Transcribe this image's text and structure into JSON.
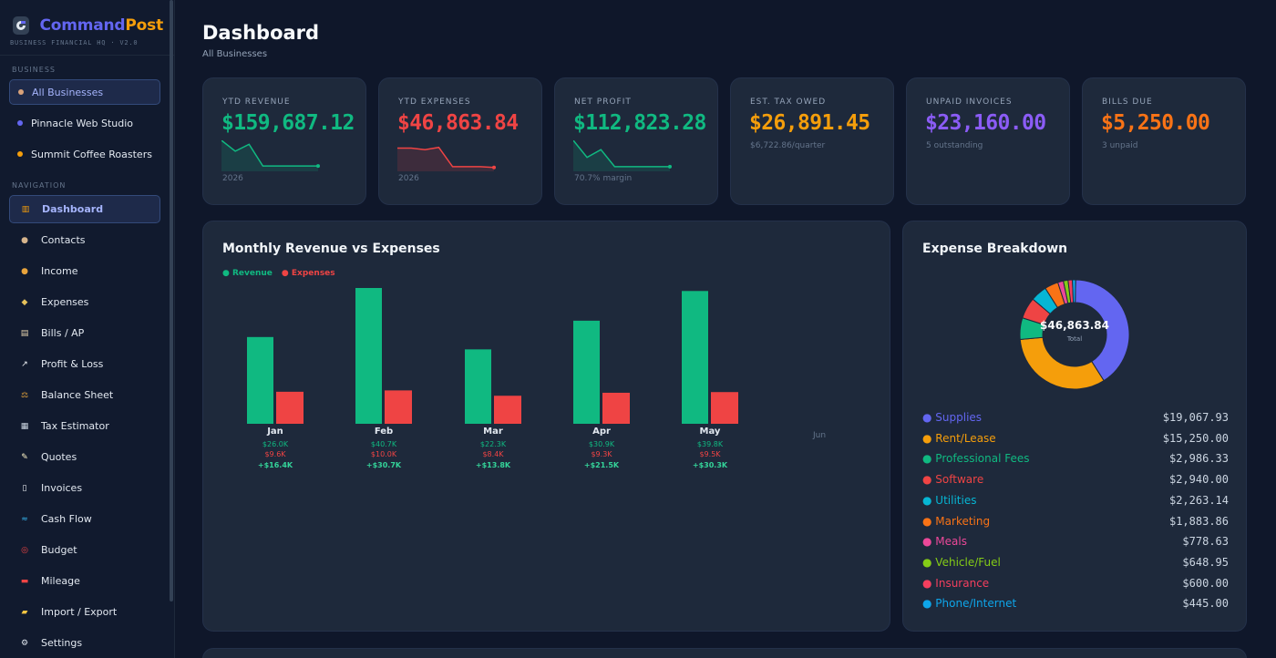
{
  "brand": {
    "name_primary": "Command",
    "name_accent": "Post",
    "tagline": "BUSINESS FINANCIAL HQ · V2.0"
  },
  "sidebar": {
    "business_section": "BUSINESS",
    "businesses": [
      {
        "label": "All Businesses",
        "color": "#f59e0b",
        "active": true
      },
      {
        "label": "Pinnacle Web Studio",
        "color": "#6366f1",
        "active": false
      },
      {
        "label": "Summit Coffee Roasters",
        "color": "#f59e0b",
        "active": false
      }
    ],
    "nav_section": "NAVIGATION",
    "nav": [
      {
        "label": "Dashboard",
        "icon": "bar-chart-icon",
        "glyph": "▥",
        "icon_color": "#f59e0b",
        "active": true
      },
      {
        "label": "Contacts",
        "icon": "people-icon",
        "glyph": "●",
        "icon_color": "#d6b48c"
      },
      {
        "label": "Income",
        "icon": "money-bag-icon",
        "glyph": "●",
        "icon_color": "#e8a33c"
      },
      {
        "label": "Expenses",
        "icon": "money-wings-icon",
        "glyph": "◆",
        "icon_color": "#e5c15b"
      },
      {
        "label": "Bills / AP",
        "icon": "clipboard-icon",
        "glyph": "▤",
        "icon_color": "#e8d5b0"
      },
      {
        "label": "Profit & Loss",
        "icon": "trend-up-icon",
        "glyph": "↗",
        "icon_color": "#f1f5f9"
      },
      {
        "label": "Balance Sheet",
        "icon": "scales-icon",
        "glyph": "⚖",
        "icon_color": "#e5a43c"
      },
      {
        "label": "Tax Estimator",
        "icon": "bank-icon",
        "glyph": "▦",
        "icon_color": "#cbd5e1"
      },
      {
        "label": "Quotes",
        "icon": "memo-icon",
        "glyph": "✎",
        "icon_color": "#fef3c7"
      },
      {
        "label": "Invoices",
        "icon": "document-icon",
        "glyph": "▯",
        "icon_color": "#f1f5f9"
      },
      {
        "label": "Cash Flow",
        "icon": "wave-icon",
        "glyph": "≈",
        "icon_color": "#38bdf8"
      },
      {
        "label": "Budget",
        "icon": "target-icon",
        "glyph": "◎",
        "icon_color": "#ef4444"
      },
      {
        "label": "Mileage",
        "icon": "car-icon",
        "glyph": "▬",
        "icon_color": "#ef4444"
      },
      {
        "label": "Import / Export",
        "icon": "folder-icon",
        "glyph": "▰",
        "icon_color": "#f5c542"
      },
      {
        "label": "Settings",
        "icon": "gear-icon",
        "glyph": "⚙",
        "icon_color": "#e2e8f0"
      }
    ]
  },
  "header": {
    "title": "Dashboard",
    "subtitle": "All Businesses"
  },
  "kpis": [
    {
      "label": "YTD REVENUE",
      "value": "$159,687.12",
      "color": "#10b981",
      "sub": "2026",
      "sparkline": [
        40,
        26,
        35,
        7,
        7,
        7,
        7,
        7
      ]
    },
    {
      "label": "YTD EXPENSES",
      "value": "$46,863.84",
      "color": "#ef4444",
      "sub": "2026",
      "sparkline": [
        30,
        30,
        28,
        31,
        6,
        6,
        6,
        5
      ]
    },
    {
      "label": "NET PROFIT",
      "value": "$112,823.28",
      "color": "#10b981",
      "sub": "70.7% margin",
      "sparkline": [
        40,
        18,
        28,
        6,
        6,
        6,
        6,
        6
      ]
    },
    {
      "label": "EST. TAX OWED",
      "value": "$26,891.45",
      "color": "#f59e0b",
      "sub": "$6,722.86/quarter"
    },
    {
      "label": "UNPAID INVOICES",
      "value": "$23,160.00",
      "color": "#8b5cf6",
      "sub": "5 outstanding"
    },
    {
      "label": "BILLS DUE",
      "value": "$5,250.00",
      "color": "#f97316",
      "sub": "3 unpaid"
    }
  ],
  "revenue_panel": {
    "title": "Monthly Revenue vs Expenses",
    "legend_revenue": "● Revenue",
    "legend_expenses": "● Expenses",
    "colors": {
      "revenue": "#10b981",
      "expenses": "#ef4444"
    }
  },
  "chart_data": {
    "type": "bar",
    "categories": [
      "Jan",
      "Feb",
      "Mar",
      "Apr",
      "May",
      "Jun"
    ],
    "series": [
      {
        "name": "Revenue",
        "values": [
          26.0,
          40.7,
          22.3,
          30.9,
          39.8,
          0
        ]
      },
      {
        "name": "Expenses",
        "values": [
          9.6,
          10.0,
          8.4,
          9.3,
          9.5,
          0
        ]
      }
    ],
    "revenue_labels": [
      "$26.0K",
      "$40.7K",
      "$22.3K",
      "$30.9K",
      "$39.8K",
      ""
    ],
    "expense_labels": [
      "$9.6K",
      "$10.0K",
      "$8.4K",
      "$9.3K",
      "$9.5K",
      ""
    ],
    "net_labels": [
      "+$16.4K",
      "+$30.7K",
      "+$13.8K",
      "+$21.5K",
      "+$30.3K",
      ""
    ],
    "ylim": [
      0,
      40.7
    ]
  },
  "expense_panel": {
    "title": "Expense Breakdown",
    "total": "$46,863.84",
    "total_label": "Total",
    "items": [
      {
        "name": "Supplies",
        "amount": "$19,067.93",
        "value": 19067.93,
        "color": "#6366f1"
      },
      {
        "name": "Rent/Lease",
        "amount": "$15,250.00",
        "value": 15250.0,
        "color": "#f59e0b"
      },
      {
        "name": "Professional Fees",
        "amount": "$2,986.33",
        "value": 2986.33,
        "color": "#10b981"
      },
      {
        "name": "Software",
        "amount": "$2,940.00",
        "value": 2940.0,
        "color": "#ef4444"
      },
      {
        "name": "Utilities",
        "amount": "$2,263.14",
        "value": 2263.14,
        "color": "#06b6d4"
      },
      {
        "name": "Marketing",
        "amount": "$1,883.86",
        "value": 1883.86,
        "color": "#f97316"
      },
      {
        "name": "Meals",
        "amount": "$778.63",
        "value": 778.63,
        "color": "#ec4899"
      },
      {
        "name": "Vehicle/Fuel",
        "amount": "$648.95",
        "value": 648.95,
        "color": "#84cc16"
      },
      {
        "name": "Insurance",
        "amount": "$600.00",
        "value": 600.0,
        "color": "#f43f5e"
      },
      {
        "name": "Phone/Internet",
        "amount": "$445.00",
        "value": 445.0,
        "color": "#0ea5e9"
      }
    ]
  }
}
